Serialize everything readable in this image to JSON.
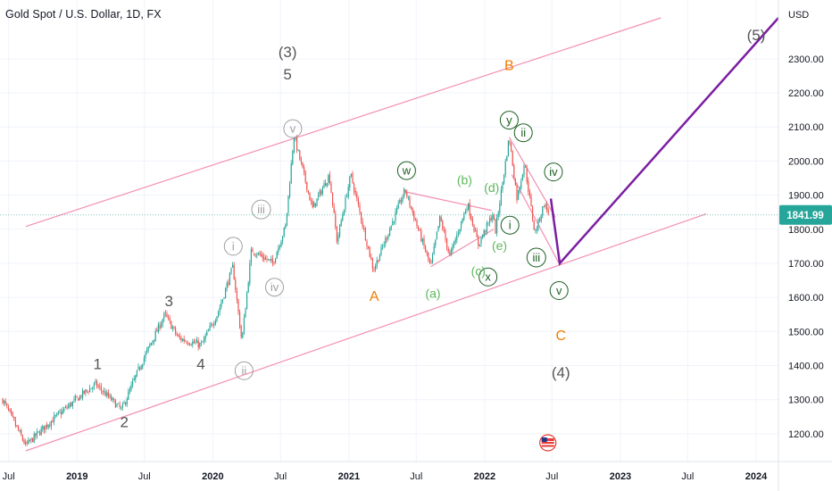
{
  "chart_data": {
    "type": "candlestick",
    "title": "Gold Spot / U.S. Dollar, 1D, FX",
    "currency_label": "USD",
    "last_price": "1841.99",
    "ylim": [
      1150,
      2420
    ],
    "y_ticks": [
      "1200.00",
      "1300.00",
      "1400.00",
      "1500.00",
      "1600.00",
      "1700.00",
      "1800.00",
      "1900.00",
      "2000.00",
      "2100.00",
      "2200.00",
      "2300.00"
    ],
    "x_ticks": [
      {
        "label": "Jul",
        "date": "2018-07-01"
      },
      {
        "label": "2019",
        "date": "2019-01-01"
      },
      {
        "label": "Jul",
        "date": "2019-07-01"
      },
      {
        "label": "2020",
        "date": "2020-01-01"
      },
      {
        "label": "Jul",
        "date": "2020-07-01"
      },
      {
        "label": "2021",
        "date": "2021-01-01"
      },
      {
        "label": "Jul",
        "date": "2021-07-01"
      },
      {
        "label": "2022",
        "date": "2022-01-01"
      },
      {
        "label": "Jul",
        "date": "2022-07-01"
      },
      {
        "label": "2023",
        "date": "2023-01-01"
      },
      {
        "label": "Jul",
        "date": "2023-07-01"
      },
      {
        "label": "2024",
        "date": "2024-01-01"
      }
    ],
    "x_range": [
      "2018-06-15",
      "2024-03-01"
    ],
    "price_path": [
      [
        "2018-06-15",
        1300
      ],
      [
        "2018-08-16",
        1165
      ],
      [
        "2018-10-15",
        1230
      ],
      [
        "2019-01-20",
        1320
      ],
      [
        "2019-02-20",
        1345
      ],
      [
        "2019-05-01",
        1270
      ],
      [
        "2019-06-20",
        1400
      ],
      [
        "2019-08-25",
        1550
      ],
      [
        "2019-10-01",
        1480
      ],
      [
        "2019-12-01",
        1460
      ],
      [
        "2020-01-15",
        1555
      ],
      [
        "2020-02-24",
        1690
      ],
      [
        "2020-03-19",
        1470
      ],
      [
        "2020-04-14",
        1740
      ],
      [
        "2020-06-10",
        1700
      ],
      [
        "2020-07-15",
        1810
      ],
      [
        "2020-08-06",
        2075
      ],
      [
        "2020-09-25",
        1860
      ],
      [
        "2020-11-09",
        1960
      ],
      [
        "2020-11-30",
        1765
      ],
      [
        "2021-01-06",
        1960
      ],
      [
        "2021-03-08",
        1680
      ],
      [
        "2021-06-01",
        1915
      ],
      [
        "2021-08-09",
        1690
      ],
      [
        "2021-09-03",
        1835
      ],
      [
        "2021-09-29",
        1720
      ],
      [
        "2021-11-16",
        1875
      ],
      [
        "2021-12-15",
        1755
      ],
      [
        "2022-01-25",
        1850
      ],
      [
        "2022-01-28",
        1780
      ],
      [
        "2022-03-08",
        2070
      ],
      [
        "2022-03-29",
        1890
      ],
      [
        "2022-04-18",
        1995
      ],
      [
        "2022-05-16",
        1787
      ],
      [
        "2022-06-10",
        1875
      ],
      [
        "2022-06-25",
        1842
      ]
    ],
    "channel_lines": [
      {
        "from": [
          "2018-08-16",
          1150
        ],
        "to": [
          "2023-08-20",
          1845
        ]
      },
      {
        "from": [
          "2018-08-16",
          1808
        ],
        "to": [
          "2023-04-20",
          2420
        ]
      },
      {
        "from": [
          "2021-06-01",
          1910
        ],
        "to": [
          "2022-01-20",
          1855
        ]
      },
      {
        "from": [
          "2021-08-09",
          1690
        ],
        "to": [
          "2022-01-25",
          1800
        ]
      },
      {
        "from": [
          "2022-03-08",
          2070
        ],
        "to": [
          "2022-07-10",
          1835
        ]
      },
      {
        "from": [
          "2022-03-15",
          1960
        ],
        "to": [
          "2022-07-20",
          1700
        ]
      }
    ],
    "projection": [
      [
        "2022-06-28",
        1890
      ],
      [
        "2022-07-22",
        1700
      ],
      [
        "2024-03-01",
        2420
      ]
    ],
    "wave_labels": [
      {
        "text": "(3)",
        "date": "2020-07-20",
        "price": 2320,
        "color": "#555555",
        "size": 17
      },
      {
        "text": "5",
        "date": "2020-07-20",
        "price": 2255,
        "color": "#555555",
        "size": 17
      },
      {
        "text": "v",
        "date": "2020-08-03",
        "price": 2095,
        "color": "#9e9e9e",
        "circle": true
      },
      {
        "text": "iii",
        "date": "2020-05-10",
        "price": 1858,
        "color": "#9e9e9e",
        "circle": true
      },
      {
        "text": "iv",
        "date": "2020-06-15",
        "price": 1630,
        "color": "#9e9e9e",
        "circle": true
      },
      {
        "text": "i",
        "date": "2020-02-25",
        "price": 1750,
        "color": "#9e9e9e",
        "circle": true
      },
      {
        "text": "ii",
        "date": "2020-03-25",
        "price": 1385,
        "color": "#9e9e9e",
        "circle": true
      },
      {
        "text": "1",
        "date": "2019-02-25",
        "price": 1405,
        "color": "#555555",
        "size": 17
      },
      {
        "text": "2",
        "date": "2019-05-08",
        "price": 1235,
        "color": "#555555",
        "size": 17
      },
      {
        "text": "3",
        "date": "2019-09-05",
        "price": 1590,
        "color": "#555555",
        "size": 17
      },
      {
        "text": "4",
        "date": "2019-11-30",
        "price": 1405,
        "color": "#555555",
        "size": 17
      },
      {
        "text": "A",
        "date": "2021-03-10",
        "price": 1605,
        "color": "#f57c00",
        "size": 16
      },
      {
        "text": "B",
        "date": "2022-03-08",
        "price": 2283,
        "color": "#f57c00",
        "size": 16
      },
      {
        "text": "C",
        "date": "2022-07-25",
        "price": 1490,
        "color": "#f57c00",
        "size": 16
      },
      {
        "text": "(4)",
        "date": "2022-07-25",
        "price": 1380,
        "color": "#555555",
        "size": 17
      },
      {
        "text": "(5)",
        "date": "2024-01-01",
        "price": 2370,
        "color": "#555555",
        "size": 17
      },
      {
        "text": "w",
        "date": "2021-06-05",
        "price": 1972,
        "color": "#1b5e20",
        "circle": true,
        "fill": "#5cb85c"
      },
      {
        "text": "x",
        "date": "2022-01-10",
        "price": 1660,
        "color": "#1b5e20",
        "circle": true,
        "fill": "#5cb85c"
      },
      {
        "text": "y",
        "date": "2022-03-08",
        "price": 2120,
        "color": "#1b5e20",
        "circle": true,
        "fill": "#5cb85c"
      },
      {
        "text": "(a)",
        "date": "2021-08-15",
        "price": 1615,
        "color": "#5cb85c",
        "size": 14
      },
      {
        "text": "(b)",
        "date": "2021-11-08",
        "price": 1948,
        "color": "#5cb85c",
        "size": 14
      },
      {
        "text": "(c)",
        "date": "2021-12-15",
        "price": 1680,
        "color": "#5cb85c",
        "size": 14
      },
      {
        "text": "(d)",
        "date": "2022-01-20",
        "price": 1925,
        "color": "#5cb85c",
        "size": 14
      },
      {
        "text": "(e)",
        "date": "2022-02-10",
        "price": 1755,
        "color": "#5cb85c",
        "size": 14
      },
      {
        "text": "i",
        "date": "2022-03-10",
        "price": 1812,
        "color": "#1b5e20",
        "circle": true,
        "fill": "#5cb85c"
      },
      {
        "text": "ii",
        "date": "2022-04-15",
        "price": 2083,
        "color": "#1b5e20",
        "circle": true,
        "fill": "#5cb85c"
      },
      {
        "text": "iii",
        "date": "2022-05-20",
        "price": 1717,
        "color": "#1b5e20",
        "circle": true,
        "fill": "#5cb85c"
      },
      {
        "text": "iv",
        "date": "2022-07-05",
        "price": 1968,
        "color": "#1b5e20",
        "circle": true,
        "fill": "#5cb85c"
      },
      {
        "text": "v",
        "date": "2022-07-20",
        "price": 1620,
        "color": "#1b5e20",
        "circle": true,
        "fill": "#5cb85c"
      }
    ],
    "colors": {
      "up": "#26a69a",
      "down": "#ef5350",
      "channel": "#f48fb1",
      "projection": "#7b1fa2",
      "price_line": "#26a69a",
      "price_badge": "#26a69a",
      "axis_text": "#131722",
      "grid": "#f0f3fa"
    },
    "grid": true,
    "event_marker": {
      "date": "2022-06-20",
      "icon": "us-flag-icon"
    }
  }
}
